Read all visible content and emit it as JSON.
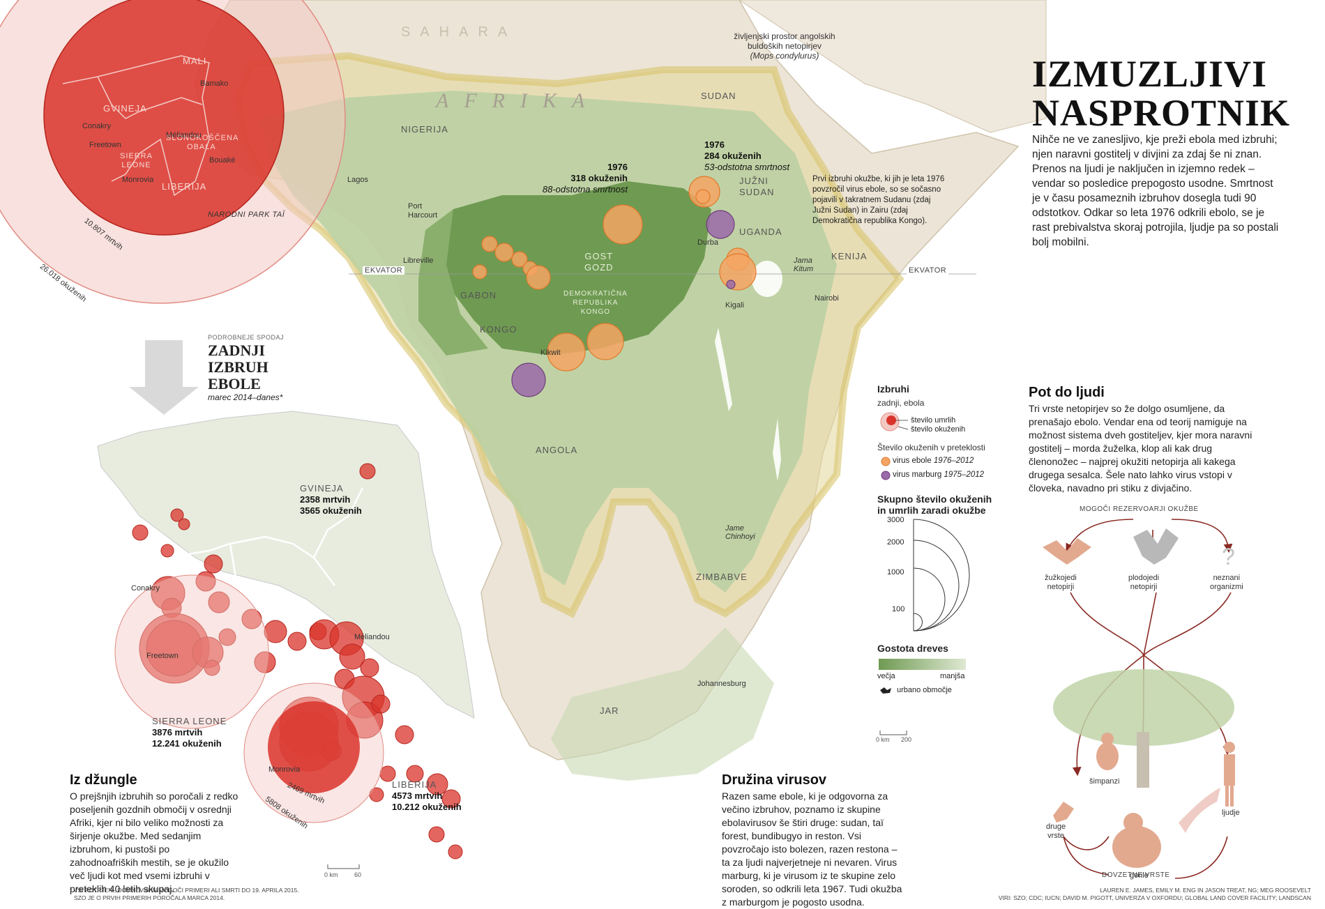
{
  "header": {
    "title_line1": "IZMUZLJIVI",
    "title_line2": "NASPROTNIK",
    "intro": "Nihče ne ve zanesljivo, kje preži ebola med izbruhi; njen naravni gostitelj v divjini za zdaj še ni znan. Prenos na ljudi je naključen in izjemno redek – vendar so posledice prepogosto usodne. Smrtnost je v času posameznih izbruhov dosegla tudi 90 odstotkov. Odkar so leta 1976 odkrili ebolo, se je rast prebivalstva skoraj potrojila, ljudje pa so postali bolj mobilni."
  },
  "map_labels": {
    "sahara": "SAHARA",
    "afrika": "AFRIKA",
    "ekvator_left": "EKVATOR",
    "ekvator_right": "EKVATOR",
    "habitat_note_line1": "življenjski prostor angolskih",
    "habitat_note_line2": "buldoških netopirjev",
    "habitat_note_line3": "(Mops condylurus)",
    "gost_gozd_line1": "GOST",
    "gost_gozd_line2": "GOZD",
    "countries": {
      "sudan": "SUDAN",
      "nigerija": "NIGERIJA",
      "juzni_sudan_1": "JUŽNI",
      "juzni_sudan_2": "SUDAN",
      "uganda": "UGANDA",
      "kenija": "KENIJA",
      "gabon": "GABON",
      "kongo": "KONGO",
      "drk_1": "DEMOKRATIČNA",
      "drk_2": "REPUBLIKA",
      "drk_3": "KONGO",
      "angola": "ANGOLA",
      "zimbabve": "ZIMBABVE",
      "jar": "JAR"
    },
    "cities": {
      "lagos": "Lagos",
      "port_harcourt_1": "Port",
      "port_harcourt_2": "Harcourt",
      "libreville": "Libreville",
      "kikwit": "Kikwit",
      "durba": "Durba",
      "kigali": "Kigali",
      "nairobi": "Nairobi",
      "jama_kitum_1": "Jama",
      "jama_kitum_2": "Kitum",
      "jama_chinhoyi_1": "Jame",
      "jama_chinhoyi_2": "Chinhoyi",
      "johannesburg": "Johannesburg"
    },
    "outbreak_1976_sudan": {
      "year": "1976",
      "cases": "284 okuženih",
      "rate": "53-odstotna smrtnost"
    },
    "outbreak_1976_zaire": {
      "year": "1976",
      "cases": "318 okuženih",
      "rate": "88-odstotna smrtnost"
    },
    "first_outbreak_note": "Prvi izbruhi okužbe, ki jih je leta 1976 povzročil virus ebole, so se sočasno pojavili v takratnem Sudanu (zdaj Južni Sudan) in Zairu (zdaj Demokratična republika Kongo)."
  },
  "inset_circle": {
    "countries": {
      "mali": "MALI",
      "gvineja": "GVINEJA",
      "slonokoscena_1": "SLONOKOŠČENA",
      "slonokoscena_2": "OBALA",
      "sierra_1": "SIERRA",
      "sierra_2": "LEONE",
      "liberija": "LIBERIJA"
    },
    "cities": {
      "bamako": "Bamako",
      "conakry": "Conakry",
      "freetown": "Freetown",
      "meliandou": "Méliandou",
      "bouake": "Bouaké",
      "monrovia": "Monrovia"
    },
    "park": "NARODNI PARK TAÏ",
    "deaths_label": "10.807 mrtvih",
    "cases_label": "26.018 okuženih"
  },
  "latest_outbreak": {
    "kicker": "PODROBNEJE SPODAJ",
    "title_1": "ZADNJI",
    "title_2": "IZBRUH",
    "title_3": "EBOLE",
    "subtitle": "marec 2014–danes*"
  },
  "detail_map": {
    "gvineja": {
      "name": "GVINEJA",
      "deaths": "2358 mrtvih",
      "cases": "3565 okuženih"
    },
    "sierra": {
      "name": "SIERRA LEONE",
      "deaths": "3876 mrtvih",
      "cases": "12.241 okuženih"
    },
    "liberija": {
      "name": "LIBERIJA",
      "deaths": "4573 mrtvih",
      "cases": "10.212 okuženih"
    },
    "cities": {
      "conakry": "Conakry",
      "freetown": "Freetown",
      "meliandou": "Méliandou",
      "monrovia": "Monrovia"
    },
    "monrovia_deaths": "2469 mrtvih",
    "monrovia_cases": "5808 okuženih",
    "scale_0": "0 km",
    "scale_60": "60"
  },
  "legend": {
    "izbruhi_title": "Izbruhi",
    "zadnji_label": "zadnji, ebola",
    "umrlih": "število umrlih",
    "okuzenih": "število okuženih",
    "past_title": "Število okuženih v preteklosti",
    "ebola_label": "virus ebole ",
    "ebola_years": "1976–2012",
    "marburg_label": "virus marburg ",
    "marburg_years": "1975–2012",
    "total_title_1": "Skupno število okuženih",
    "total_title_2": "in umrlih zaradi okužbe",
    "scale_values": [
      "3000",
      "2000",
      "1000",
      "100"
    ],
    "density_title": "Gostota dreves",
    "vecja": "večja",
    "manjsa": "manjša",
    "urban": "urbano območje",
    "scale_0": "0 km",
    "scale_200": "200"
  },
  "iz_dzungle": {
    "title": "Iz džungle",
    "text": "O prejšnjih izbruhih so poročali z redko poseljenih gozdnih območij v osrednji Afriki, kjer ni bilo veliko možnosti za širjenje okužbe. Med sedanjim izbruhom, ki pustoši po zahodnoafriških mestih, se je okužilo več ljudi kot med vsemi izbruhi v preteklih 40 letih skupaj."
  },
  "druzina": {
    "title": "Družina virusov",
    "text": "Razen same ebole, ki je odgovorna za večino izbruhov, poznamo iz skupine ebolavirusov še štiri druge: sudan, taï forest, bundibugyo in reston. Vsi povzročajo isto bolezen, razen restona – ta za ljudi najverjetneje ni nevaren. Virus marburg, ki je virusom iz te skupine zelo soroden, so odkrili leta 1967. Tudi okužba z marburgom je pogosto usodna."
  },
  "pot": {
    "title": "Pot do ljudi",
    "text": "Tri vrste netopirjev so že dolgo osumljene, da prenašajo ebolo. Vendar ena od teorij namiguje na možnost sistema dveh gostiteljev, kjer mora naravni gostitelj – morda žuželka, klop ali kak drug členonožec – najprej okužiti netopirja ali kakega drugega sesalca. Šele nato lahko virus vstopi v človeka, navadno pri stiku z divjačino.",
    "reservoirs_title": "MOGOČI REZERVOARJI OKUŽBE",
    "zuzkojedi_1": "žužkojedi",
    "zuzkojedi_2": "netopirji",
    "plodojedi_1": "plodojedi",
    "plodojedi_2": "netopirji",
    "neznani_1": "neznani",
    "neznani_2": "organizmi",
    "simpanzi": "šimpanzi",
    "druge_1": "druge",
    "druge_2": "vrste",
    "gorile": "gorile",
    "ljudje": "ljudje",
    "dovzetne": "DOVZETNE VRSTE"
  },
  "footnote_1": "* VSI POTRJENI, DOMNEVNI IN MOGOČI PRIMERI ALI SMRTI DO 19. APRILA 2015.",
  "footnote_2": "SZO JE O PRVIH PRIMERIH POROČALA MARCA 2014.",
  "credits_1": "LAUREN E. JAMES, EMILY M. ENG IN JASON TREAT, NG; MEG ROOSEVELT",
  "credits_2": "VIRI: SZO; CDC; IUCN; DAVID M. PIGOTT, UNIVERZA V OXFORDU; GLOBAL LAND COVER FACILITY; LANDSCAN",
  "colors": {
    "forest_dark": "#6f9a52",
    "forest_light": "#b9d0a2",
    "land": "#ece4d6",
    "ebola": "#f4a463",
    "marburg": "#9b6aa8",
    "outbreak_red": "#d9342b",
    "habitat": "#d9c77a"
  }
}
